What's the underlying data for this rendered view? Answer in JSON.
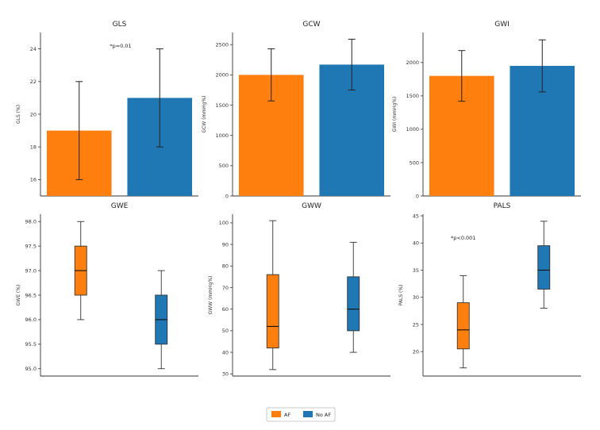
{
  "colors": {
    "af": "#ff7f0e",
    "no_af": "#1f77b4"
  },
  "legend": {
    "af_label": "AF",
    "no_af_label": "No AF"
  },
  "chart_data": [
    {
      "type": "bar",
      "title": "GLS",
      "ylabel": "GLS (%)",
      "categories": [
        "AF",
        "No AF"
      ],
      "values": [
        19,
        21
      ],
      "errors": [
        3,
        3
      ],
      "ylim": [
        15,
        25
      ],
      "yticks": [
        16,
        18,
        20,
        22,
        24
      ],
      "annotation": "*p=0.01"
    },
    {
      "type": "bar",
      "title": "GCW",
      "ylabel": "GCW (mmHg%)",
      "categories": [
        "AF",
        "No AF"
      ],
      "values": [
        2000,
        2170
      ],
      "errors": [
        430,
        420
      ],
      "ylim": [
        0,
        2700
      ],
      "yticks": [
        0,
        500,
        1000,
        1500,
        2000,
        2500
      ],
      "annotation": ""
    },
    {
      "type": "bar",
      "title": "GWI",
      "ylabel": "GWI (mmHg%)",
      "categories": [
        "AF",
        "No AF"
      ],
      "values": [
        1800,
        1950
      ],
      "errors": [
        380,
        390
      ],
      "ylim": [
        0,
        2450
      ],
      "yticks": [
        0,
        500,
        1000,
        1500,
        2000
      ],
      "annotation": ""
    },
    {
      "type": "box",
      "title": "GWE",
      "ylabel": "GWE (%)",
      "categories": [
        "AF",
        "No AF"
      ],
      "boxes": [
        {
          "min": 96.0,
          "q1": 96.5,
          "median": 97.0,
          "q3": 97.5,
          "max": 98.0
        },
        {
          "min": 95.0,
          "q1": 95.5,
          "median": 96.0,
          "q3": 96.5,
          "max": 97.0
        }
      ],
      "ylim": [
        94.85,
        98.15
      ],
      "yticks": [
        95.0,
        95.5,
        96.0,
        96.5,
        97.0,
        97.5,
        98.0
      ],
      "ytick_labels": [
        "95.0",
        "95.5",
        "96.0",
        "96.5",
        "97.0",
        "97.5",
        "98.0"
      ],
      "annotation": ""
    },
    {
      "type": "box",
      "title": "GWW",
      "ylabel": "GWW (mmHg%)",
      "categories": [
        "AF",
        "No AF"
      ],
      "boxes": [
        {
          "min": 32,
          "q1": 42,
          "median": 52,
          "q3": 76,
          "max": 101
        },
        {
          "min": 40,
          "q1": 50,
          "median": 60,
          "q3": 75,
          "max": 91
        }
      ],
      "ylim": [
        29,
        104
      ],
      "yticks": [
        30,
        40,
        50,
        60,
        70,
        80,
        90,
        100
      ],
      "annotation": ""
    },
    {
      "type": "box",
      "title": "PALS",
      "ylabel": "PALS (%)",
      "categories": [
        "AF",
        "No AF"
      ],
      "boxes": [
        {
          "min": 17,
          "q1": 20.5,
          "median": 24,
          "q3": 29,
          "max": 34
        },
        {
          "min": 28,
          "q1": 31.5,
          "median": 35,
          "q3": 39.5,
          "max": 44
        }
      ],
      "ylim": [
        15.5,
        45.3
      ],
      "yticks": [
        20,
        25,
        30,
        35,
        40,
        45
      ],
      "annotation": "*p<0.001"
    }
  ]
}
